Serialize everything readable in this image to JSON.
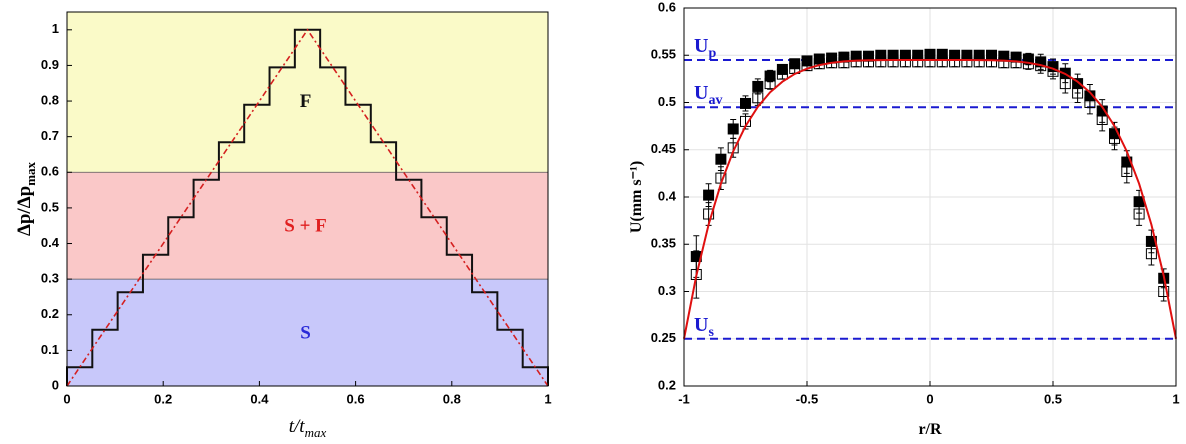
{
  "chart_data": [
    {
      "type": "line",
      "xlabel": [
        "t/t",
        "max"
      ],
      "ylabel": [
        "Δp/Δp",
        "max"
      ],
      "xlim": [
        0,
        1
      ],
      "ylim": [
        0,
        1.05
      ],
      "xticks": [
        0,
        0.2,
        0.4,
        0.6,
        0.8,
        1
      ],
      "yticks": [
        0,
        0.1,
        0.2,
        0.3,
        0.4,
        0.5,
        0.6,
        0.7,
        0.8,
        0.9,
        1
      ],
      "bands": [
        {
          "label": "S",
          "range": [
            0,
            0.3
          ],
          "color": "#c8c8fa",
          "label_color": "#2a2ad8"
        },
        {
          "label": "S + F",
          "range": [
            0.3,
            0.6
          ],
          "color": "#fac8c8",
          "label_color": "#e02020"
        },
        {
          "label": "F",
          "range": [
            0.6,
            1.05
          ],
          "color": "#fafac8",
          "label_color": "#111111"
        }
      ],
      "series": [
        {
          "color": "#111111",
          "x": [
            0,
            0,
            0.0526,
            0.0526,
            0.1053,
            0.1053,
            0.1579,
            0.1579,
            0.2105,
            0.2105,
            0.2632,
            0.2632,
            0.3158,
            0.3158,
            0.3684,
            0.3684,
            0.4211,
            0.4211,
            0.4737,
            0.4737,
            0.5263,
            0.5263,
            0.5789,
            0.5789,
            0.6316,
            0.6316,
            0.6842,
            0.6842,
            0.7368,
            0.7368,
            0.7895,
            0.7895,
            0.8421,
            0.8421,
            0.8947,
            0.8947,
            0.9474,
            0.9474,
            1,
            1
          ],
          "values": [
            0,
            0.0526,
            0.0526,
            0.1579,
            0.1579,
            0.2632,
            0.2632,
            0.3684,
            0.3684,
            0.4737,
            0.4737,
            0.5789,
            0.5789,
            0.6842,
            0.6842,
            0.7895,
            0.7895,
            0.8947,
            0.8947,
            1,
            1,
            0.8947,
            0.8947,
            0.7895,
            0.7895,
            0.6842,
            0.6842,
            0.5789,
            0.5789,
            0.4737,
            0.4737,
            0.3684,
            0.3684,
            0.2632,
            0.2632,
            0.1579,
            0.1579,
            0.0526,
            0.0526,
            0
          ]
        },
        {
          "color": "#d42020",
          "dashed": true,
          "x": [
            0,
            0.5,
            1
          ],
          "values": [
            0,
            1,
            0
          ]
        }
      ]
    },
    {
      "type": "scatter",
      "xlabel": "r/R",
      "ylabel": "U(mm s⁻¹)",
      "xlim": [
        -1,
        1
      ],
      "ylim": [
        0.2,
        0.6
      ],
      "xticks": [
        -1,
        -0.5,
        0,
        0.5,
        1
      ],
      "yticks": [
        0.2,
        0.25,
        0.3,
        0.35,
        0.4,
        0.45,
        0.5,
        0.55,
        0.6
      ],
      "grid": true,
      "hlines": [
        {
          "label": [
            "U",
            "p"
          ],
          "value": 0.545,
          "color": "#1a1ad0"
        },
        {
          "label": [
            "U",
            "av"
          ],
          "value": 0.495,
          "color": "#1a1ad0"
        },
        {
          "label": [
            "U",
            "s"
          ],
          "value": 0.25,
          "color": "#1a1ad0"
        }
      ],
      "x": [
        -0.95,
        -0.9,
        -0.85,
        -0.8,
        -0.75,
        -0.7,
        -0.65,
        -0.6,
        -0.55,
        -0.5,
        -0.45,
        -0.4,
        -0.35,
        -0.3,
        -0.25,
        -0.2,
        -0.15,
        -0.1,
        -0.05,
        0,
        0.05,
        0.1,
        0.15,
        0.2,
        0.25,
        0.3,
        0.35,
        0.4,
        0.45,
        0.5,
        0.55,
        0.6,
        0.65,
        0.7,
        0.75,
        0.8,
        0.85,
        0.9,
        0.95
      ],
      "series": [
        {
          "marker": "filled",
          "color": "#000000",
          "values": [
            0.337,
            0.402,
            0.44,
            0.472,
            0.499,
            0.517,
            0.528,
            0.535,
            0.541,
            0.544,
            0.546,
            0.547,
            0.548,
            0.549,
            0.549,
            0.55,
            0.55,
            0.55,
            0.55,
            0.551,
            0.551,
            0.55,
            0.55,
            0.55,
            0.55,
            0.549,
            0.548,
            0.546,
            0.543,
            0.538,
            0.531,
            0.52,
            0.507,
            0.491,
            0.467,
            0.437,
            0.395,
            0.353,
            0.314
          ],
          "errors": [
            0.022,
            0.012,
            0.012,
            0.01,
            0.008,
            0.008,
            0.006,
            0.005,
            0.005,
            0.005,
            0.005,
            0.005,
            0.005,
            0.005,
            0.005,
            0.005,
            0.005,
            0.005,
            0.005,
            0.005,
            0.005,
            0.005,
            0.005,
            0.005,
            0.005,
            0.005,
            0.005,
            0.006,
            0.008,
            0.008,
            0.01,
            0.01,
            0.012,
            0.012,
            0.012,
            0.012,
            0.012,
            0.012,
            0.01
          ]
        },
        {
          "marker": "open",
          "color": "#000000",
          "values": [
            0.318,
            0.382,
            0.42,
            0.452,
            0.48,
            0.505,
            0.52,
            0.53,
            0.536,
            0.539,
            0.541,
            0.542,
            0.542,
            0.543,
            0.543,
            0.543,
            0.543,
            0.543,
            0.543,
            0.543,
            0.543,
            0.543,
            0.543,
            0.543,
            0.543,
            0.542,
            0.542,
            0.541,
            0.539,
            0.533,
            0.52,
            0.51,
            0.5,
            0.482,
            0.462,
            0.427,
            0.382,
            0.34,
            0.3
          ],
          "errors": [
            0.025,
            0.012,
            0.012,
            0.01,
            0.008,
            0.008,
            0.006,
            0.005,
            0.005,
            0.005,
            0.005,
            0.005,
            0.005,
            0.005,
            0.005,
            0.005,
            0.005,
            0.005,
            0.005,
            0.005,
            0.005,
            0.005,
            0.005,
            0.005,
            0.005,
            0.005,
            0.005,
            0.006,
            0.008,
            0.008,
            0.01,
            0.01,
            0.012,
            0.012,
            0.012,
            0.012,
            0.012,
            0.012,
            0.01
          ]
        }
      ],
      "curve": {
        "color": "#e01010",
        "x": [
          -1,
          -0.95,
          -0.9,
          -0.85,
          -0.8,
          -0.75,
          -0.7,
          -0.65,
          -0.6,
          -0.55,
          -0.5,
          -0.45,
          -0.4,
          -0.35,
          -0.3,
          -0.25,
          -0.2,
          -0.15,
          -0.1,
          -0.05,
          0,
          0.05,
          0.1,
          0.15,
          0.2,
          0.25,
          0.3,
          0.35,
          0.4,
          0.45,
          0.5,
          0.55,
          0.6,
          0.65,
          0.7,
          0.75,
          0.8,
          0.85,
          0.9,
          0.95,
          1
        ],
        "values": [
          0.25,
          0.3167,
          0.3708,
          0.4141,
          0.4483,
          0.475,
          0.4954,
          0.5108,
          0.522,
          0.5302,
          0.5358,
          0.5396,
          0.542,
          0.5435,
          0.5443,
          0.5447,
          0.5449,
          0.545,
          0.545,
          0.545,
          0.545,
          0.545,
          0.545,
          0.545,
          0.5449,
          0.5447,
          0.5443,
          0.5435,
          0.542,
          0.5396,
          0.5358,
          0.5302,
          0.522,
          0.5108,
          0.4954,
          0.475,
          0.4483,
          0.4141,
          0.3708,
          0.3167,
          0.25
        ]
      }
    }
  ]
}
